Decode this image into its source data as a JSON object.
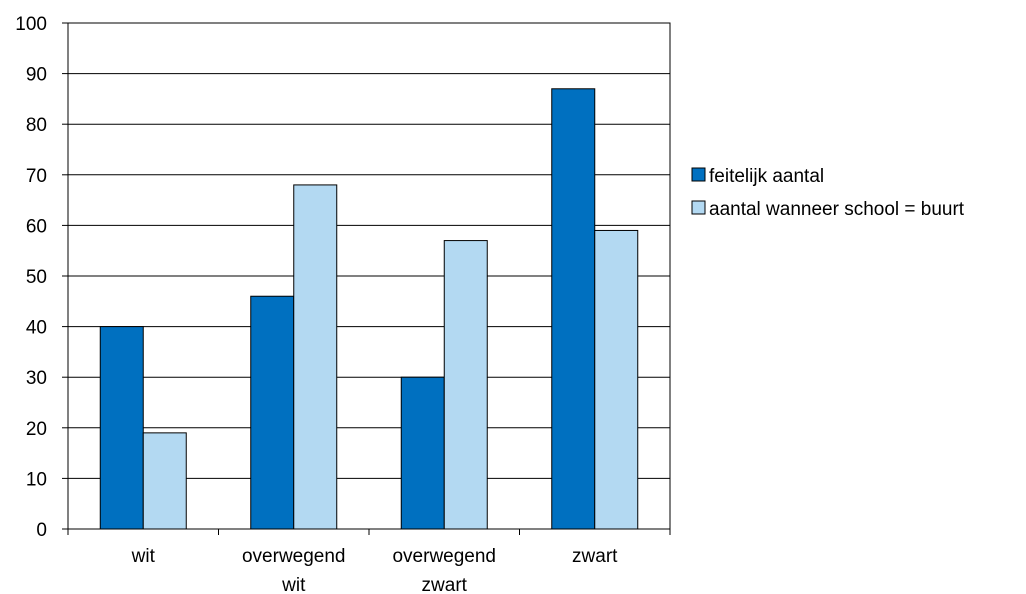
{
  "chart_data": {
    "type": "bar",
    "categories": [
      [
        "wit"
      ],
      [
        "overwegend",
        "wit"
      ],
      [
        "overwegend",
        "zwart"
      ],
      [
        "zwart"
      ]
    ],
    "series": [
      {
        "name": "feitelijk aantal",
        "color": "#0070c0",
        "values": [
          40,
          46,
          30,
          87
        ]
      },
      {
        "name": "aantal wanneer school = buurt",
        "color": "#b3d9f2",
        "values": [
          19,
          68,
          57,
          59
        ]
      }
    ],
    "title": "",
    "xlabel": "",
    "ylabel": "",
    "ylim": [
      0,
      100
    ],
    "yticks": [
      0,
      10,
      20,
      30,
      40,
      50,
      60,
      70,
      80,
      90,
      100
    ],
    "grid": true,
    "legend_position": "right"
  }
}
